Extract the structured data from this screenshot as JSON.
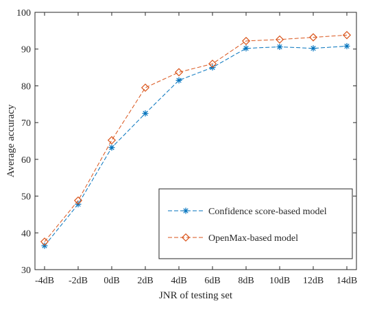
{
  "chart_data": {
    "type": "line",
    "xlabel": "JNR of testing set",
    "ylabel": "Average accuracy",
    "categories": [
      "-4dB",
      "-2dB",
      "0dB",
      "2dB",
      "4dB",
      "6dB",
      "8dB",
      "10dB",
      "12dB",
      "14dB"
    ],
    "ylim": [
      30,
      100
    ],
    "yticks": [
      "30",
      "40",
      "50",
      "60",
      "70",
      "80",
      "90",
      "100"
    ],
    "grid": false,
    "legend_position": "bottom-right",
    "series": [
      {
        "name": "Confidence score-based model",
        "marker": "asterisk",
        "line_style": "dashed",
        "color": "#0072BD",
        "values": [
          36.5,
          47.8,
          63.2,
          72.5,
          81.5,
          85.0,
          90.2,
          90.6,
          90.2,
          90.8
        ]
      },
      {
        "name": "OpenMax-based model",
        "marker": "diamond",
        "line_style": "dashed",
        "color": "#D95319",
        "values": [
          37.6,
          48.8,
          65.2,
          79.5,
          83.7,
          86.0,
          92.2,
          92.6,
          93.2,
          93.8
        ]
      }
    ]
  }
}
